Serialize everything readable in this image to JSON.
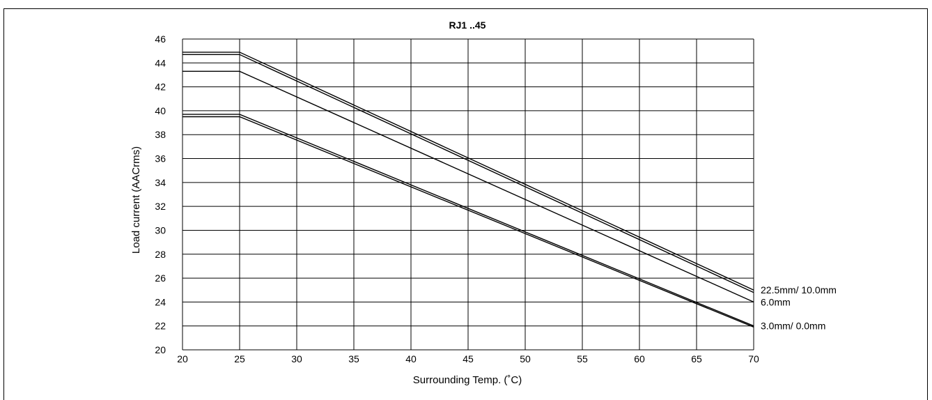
{
  "chart_data": {
    "type": "line",
    "title": "RJ1 ..45",
    "xlabel": "Surrounding Temp. (˚C)",
    "ylabel": "Load current (AACrms)",
    "xlim": [
      20,
      70
    ],
    "ylim": [
      20,
      46
    ],
    "xticks": [
      "20",
      "25",
      "30",
      "35",
      "40",
      "45",
      "50",
      "55",
      "60",
      "65",
      "70"
    ],
    "yticks": [
      "20",
      "22",
      "24",
      "26",
      "28",
      "30",
      "32",
      "34",
      "36",
      "38",
      "40",
      "42",
      "44",
      "46"
    ],
    "grid": true,
    "line_color": "#000000",
    "series": [
      {
        "x": [
          20,
          25,
          70
        ],
        "y": [
          44.9,
          44.9,
          25.0
        ]
      },
      {
        "x": [
          20,
          25,
          70
        ],
        "y": [
          44.7,
          44.7,
          24.8
        ]
      },
      {
        "x": [
          20,
          25,
          70
        ],
        "y": [
          43.3,
          43.3,
          24.0
        ]
      },
      {
        "x": [
          20,
          25,
          70
        ],
        "y": [
          39.7,
          39.7,
          22.0
        ]
      },
      {
        "x": [
          20,
          25,
          70
        ],
        "y": [
          39.5,
          39.5,
          21.9
        ]
      }
    ],
    "annotations": [
      {
        "text": "22.5mm/ 10.0mm",
        "x": 70,
        "y": 25.0
      },
      {
        "text": "6.0mm",
        "x": 70,
        "y": 24.0
      },
      {
        "text": "3.0mm/ 0.0mm",
        "x": 70,
        "y": 22.0
      }
    ]
  }
}
